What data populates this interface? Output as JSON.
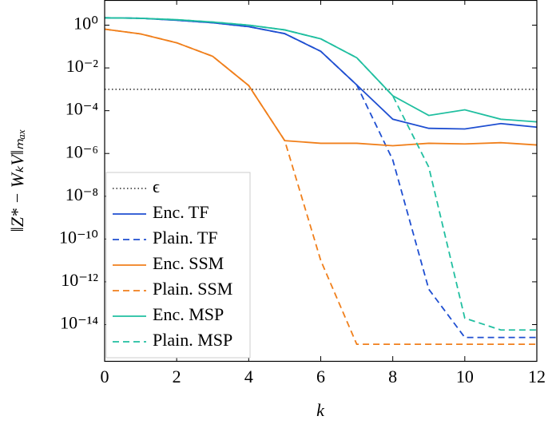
{
  "chart_data": {
    "type": "line",
    "ylabel": "‖Z* − WₖV‖ₘₐₓ",
    "xlabel": "k",
    "yscale": "log",
    "x": [
      0,
      1,
      2,
      3,
      4,
      5,
      6,
      7,
      8,
      9,
      10,
      11,
      12
    ],
    "xlim": [
      0,
      12
    ],
    "xticks": [
      0,
      2,
      4,
      6,
      8,
      10,
      12
    ],
    "ylim": [
      2e-16,
      15
    ],
    "yticks": [
      {
        "value": 1,
        "label": "10⁰"
      },
      {
        "value": 0.01,
        "label": "10⁻²"
      },
      {
        "value": 0.0001,
        "label": "10⁻⁴"
      },
      {
        "value": 1e-06,
        "label": "10⁻⁶"
      },
      {
        "value": 1e-08,
        "label": "10⁻⁸"
      },
      {
        "value": 1e-10,
        "label": "10⁻¹⁰"
      },
      {
        "value": 1e-12,
        "label": "10⁻¹²"
      },
      {
        "value": 1e-14,
        "label": "10⁻¹⁴"
      }
    ],
    "legend": "lower left",
    "hlines": [
      {
        "name": "ϵ",
        "value": 0.001,
        "color": "#000000",
        "linestyle": "dotted"
      }
    ],
    "series": [
      {
        "name": "Enc. TF",
        "color": "#1f4fd1",
        "linestyle": "solid",
        "values": [
          2.2,
          2.1,
          1.7,
          1.3,
          0.85,
          0.4,
          0.06,
          0.0016,
          4e-05,
          1.5e-05,
          1.4e-05,
          2.5e-05,
          1.7e-05
        ]
      },
      {
        "name": "Plain. TF",
        "color": "#1f4fd1",
        "linestyle": "dashed",
        "values": [
          2.2,
          2.1,
          1.7,
          1.3,
          0.85,
          0.4,
          0.06,
          0.0016,
          5e-07,
          4.5e-13,
          2.5e-15,
          2.5e-15,
          2.5e-15
        ]
      },
      {
        "name": "Enc. SSM",
        "color": "#f07f1b",
        "linestyle": "solid",
        "values": [
          0.65,
          0.39,
          0.15,
          0.035,
          0.0015,
          4e-06,
          3e-06,
          3e-06,
          2.3e-06,
          3e-06,
          2.8e-06,
          3.2e-06,
          2.5e-06
        ]
      },
      {
        "name": "Plain. SSM",
        "color": "#f07f1b",
        "linestyle": "dashed",
        "values": [
          0.65,
          0.39,
          0.15,
          0.035,
          0.0015,
          4e-06,
          1e-11,
          1.2e-15,
          1.2e-15,
          1.2e-15,
          1.2e-15,
          1.2e-15,
          1.2e-15
        ]
      },
      {
        "name": "Enc. MSP",
        "color": "#20bfa0",
        "linestyle": "solid",
        "values": [
          2.2,
          2.1,
          1.8,
          1.4,
          1.0,
          0.6,
          0.23,
          0.03,
          0.0005,
          6e-05,
          0.00011,
          4e-05,
          3e-05
        ]
      },
      {
        "name": "Plain. MSP",
        "color": "#20bfa0",
        "linestyle": "dashed",
        "values": [
          2.2,
          2.1,
          1.8,
          1.4,
          1.0,
          0.6,
          0.23,
          0.03,
          0.0005,
          2.3e-07,
          2e-14,
          5.6e-15,
          5.6e-15
        ]
      }
    ]
  }
}
